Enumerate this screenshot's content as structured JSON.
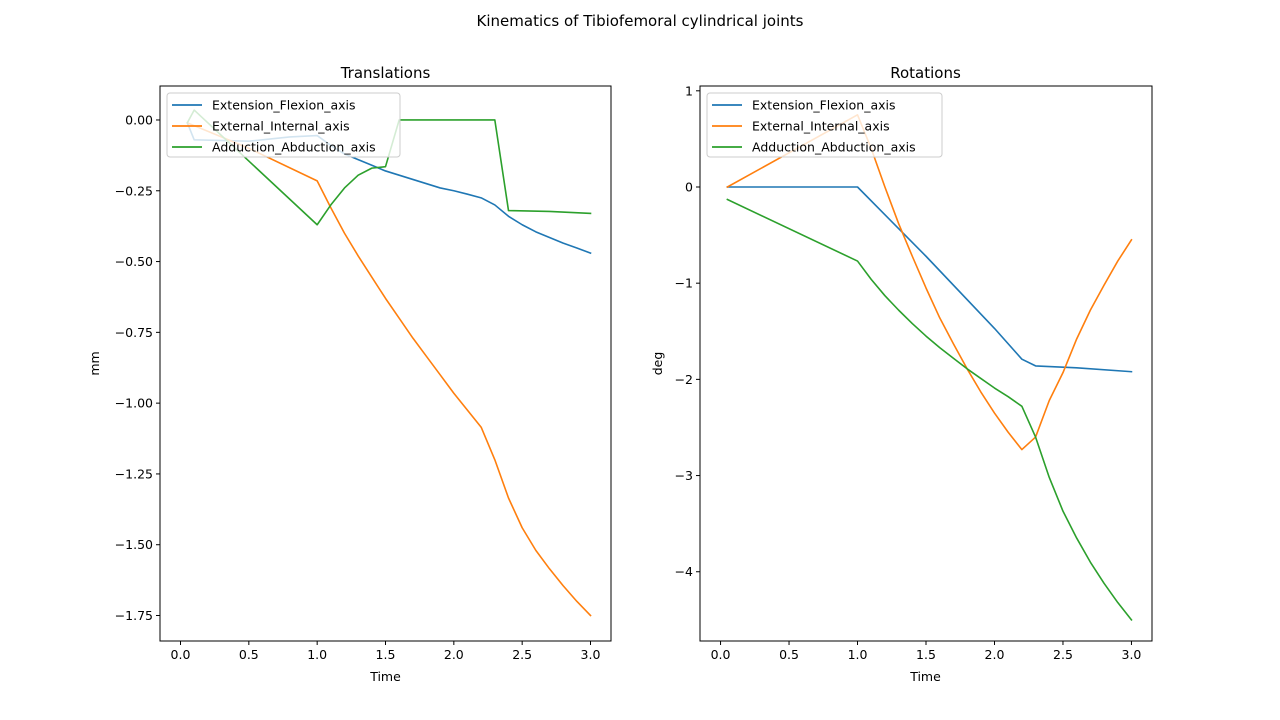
{
  "figure": {
    "suptitle": "Kinematics of Tibiofemoral cylindrical joints"
  },
  "chart_data": [
    {
      "type": "line",
      "title": "Translations",
      "xlabel": "Time",
      "ylabel": "mm",
      "xlim": [
        -0.15,
        3.15
      ],
      "ylim": [
        -1.84,
        0.12
      ],
      "xticks": [
        0.0,
        0.5,
        1.0,
        1.5,
        2.0,
        2.5,
        3.0
      ],
      "xtick_labels": [
        "0.0",
        "0.5",
        "1.0",
        "1.5",
        "2.0",
        "2.5",
        "3.0"
      ],
      "yticks": [
        0.0,
        -0.25,
        -0.5,
        -0.75,
        -1.0,
        -1.25,
        -1.5,
        -1.75
      ],
      "ytick_labels": [
        "0.00",
        "−0.25",
        "−0.50",
        "−0.75",
        "−1.00",
        "−1.25",
        "−1.50",
        "−1.75"
      ],
      "grid": false,
      "legend_position": "upper-left",
      "series": [
        {
          "name": "Extension_Flexion_axis",
          "color": "#1f77b4",
          "x": [
            0.05,
            0.1,
            0.5,
            0.8,
            1.0,
            1.1,
            1.2,
            1.3,
            1.4,
            1.5,
            1.6,
            1.7,
            1.8,
            1.9,
            2.0,
            2.1,
            2.2,
            2.3,
            2.4,
            2.5,
            2.6,
            2.7,
            2.8,
            2.9,
            3.0
          ],
          "y": [
            -0.01,
            -0.07,
            -0.075,
            -0.06,
            -0.055,
            -0.09,
            -0.12,
            -0.14,
            -0.16,
            -0.18,
            -0.195,
            -0.21,
            -0.225,
            -0.24,
            -0.25,
            -0.262,
            -0.275,
            -0.3,
            -0.34,
            -0.37,
            -0.395,
            -0.415,
            -0.435,
            -0.452,
            -0.47
          ]
        },
        {
          "name": "External_Internal_axis",
          "color": "#ff7f0e",
          "x": [
            0.05,
            0.5,
            1.0,
            1.1,
            1.2,
            1.3,
            1.4,
            1.5,
            1.6,
            1.7,
            1.8,
            1.9,
            2.0,
            2.1,
            2.2,
            2.3,
            2.4,
            2.5,
            2.6,
            2.7,
            2.8,
            2.9,
            3.0
          ],
          "y": [
            -0.01,
            -0.1,
            -0.215,
            -0.31,
            -0.4,
            -0.48,
            -0.555,
            -0.63,
            -0.7,
            -0.77,
            -0.835,
            -0.9,
            -0.965,
            -1.025,
            -1.085,
            -1.2,
            -1.335,
            -1.44,
            -1.52,
            -1.585,
            -1.645,
            -1.7,
            -1.75
          ]
        },
        {
          "name": "Adduction_Abduction_axis",
          "color": "#2ca02c",
          "x": [
            0.05,
            0.1,
            1.0,
            1.1,
            1.2,
            1.3,
            1.4,
            1.5,
            1.6,
            1.7,
            2.0,
            2.3,
            2.4,
            2.7,
            3.0
          ],
          "y": [
            -0.01,
            0.035,
            -0.37,
            -0.3,
            -0.24,
            -0.195,
            -0.17,
            -0.165,
            0.0,
            0.0,
            0.0,
            0.0,
            -0.32,
            -0.323,
            -0.33
          ]
        }
      ]
    },
    {
      "type": "line",
      "title": "Rotations",
      "xlabel": "Time",
      "ylabel": "deg",
      "xlim": [
        -0.15,
        3.15
      ],
      "ylim": [
        -4.72,
        1.05
      ],
      "xticks": [
        0.0,
        0.5,
        1.0,
        1.5,
        2.0,
        2.5,
        3.0
      ],
      "xtick_labels": [
        "0.0",
        "0.5",
        "1.0",
        "1.5",
        "2.0",
        "2.5",
        "3.0"
      ],
      "yticks": [
        1,
        0,
        -1,
        -2,
        -3,
        -4
      ],
      "ytick_labels": [
        "1",
        "0",
        "−1",
        "−2",
        "−3",
        "−4"
      ],
      "grid": false,
      "legend_position": "upper-left",
      "series": [
        {
          "name": "Extension_Flexion_axis",
          "color": "#1f77b4",
          "x": [
            0.05,
            0.5,
            1.0,
            1.5,
            2.0,
            2.2,
            2.3,
            2.6,
            3.0
          ],
          "y": [
            0.0,
            0.0,
            0.0,
            -0.72,
            -1.47,
            -1.79,
            -1.86,
            -1.88,
            -1.92
          ]
        },
        {
          "name": "External_Internal_axis",
          "color": "#ff7f0e",
          "x": [
            0.05,
            1.0,
            1.1,
            1.2,
            1.3,
            1.4,
            1.5,
            1.6,
            1.7,
            1.8,
            1.9,
            2.0,
            2.1,
            2.2,
            2.3,
            2.4,
            2.5,
            2.6,
            2.7,
            2.8,
            2.9,
            3.0
          ],
          "y": [
            0.0,
            0.75,
            0.4,
            0.0,
            -0.38,
            -0.72,
            -1.05,
            -1.36,
            -1.63,
            -1.89,
            -2.13,
            -2.35,
            -2.55,
            -2.73,
            -2.6,
            -2.22,
            -1.93,
            -1.58,
            -1.28,
            -1.02,
            -0.77,
            -0.55
          ]
        },
        {
          "name": "Adduction_Abduction_axis",
          "color": "#2ca02c",
          "x": [
            0.05,
            1.0,
            1.1,
            1.2,
            1.3,
            1.4,
            1.5,
            1.6,
            1.7,
            1.8,
            1.9,
            2.0,
            2.1,
            2.2,
            2.3,
            2.4,
            2.5,
            2.6,
            2.7,
            2.8,
            2.9,
            3.0
          ],
          "y": [
            -0.13,
            -0.77,
            -0.96,
            -1.13,
            -1.28,
            -1.42,
            -1.55,
            -1.67,
            -1.78,
            -1.89,
            -1.99,
            -2.09,
            -2.18,
            -2.28,
            -2.6,
            -3.02,
            -3.37,
            -3.65,
            -3.9,
            -4.12,
            -4.32,
            -4.5
          ]
        }
      ]
    }
  ]
}
